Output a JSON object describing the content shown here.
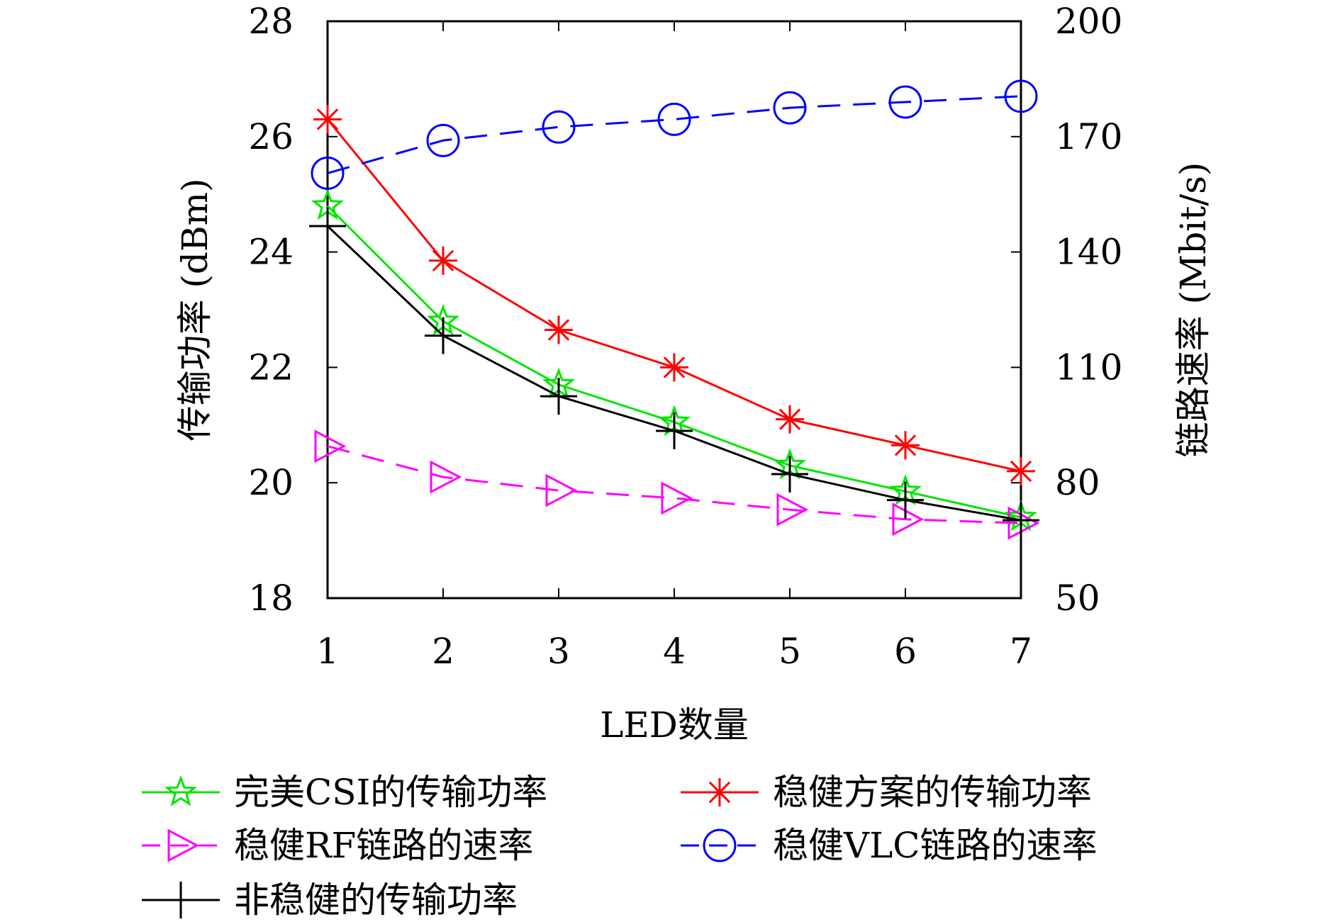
{
  "chart_data": {
    "type": "line",
    "xlabel": "LED数量",
    "ylabel": "传输功率 (dBm)",
    "y2label": "链路速率 (Mbit/s)",
    "x": [
      1,
      2,
      3,
      4,
      5,
      6,
      7
    ],
    "xlim": [
      1,
      7
    ],
    "ylim": [
      18,
      28
    ],
    "y2lim": [
      50,
      200
    ],
    "xticks": [
      "1",
      "2",
      "3",
      "4",
      "5",
      "6",
      "7"
    ],
    "yticks": [
      "18",
      "20",
      "22",
      "24",
      "26",
      "28"
    ],
    "y2ticks": [
      "50",
      "80",
      "110",
      "140",
      "170",
      "200"
    ],
    "grid": false,
    "legend_position": "bottom",
    "series": [
      {
        "name": "完美CSI的传输功率",
        "axis": "left",
        "color": "#00e600",
        "marker": "star",
        "dash": "solid",
        "values": [
          24.8,
          22.8,
          21.7,
          21.05,
          20.3,
          19.85,
          19.4
        ]
      },
      {
        "name": "稳健方案的传输功率",
        "axis": "left",
        "color": "#ff0000",
        "marker": "asterisk",
        "dash": "solid",
        "values": [
          26.3,
          23.85,
          22.65,
          22.0,
          21.1,
          20.65,
          20.2
        ]
      },
      {
        "name": "稳健RF链路的速率",
        "axis": "right",
        "color": "#ff00ff",
        "marker": "triangle-right",
        "dash": "dashed",
        "values": [
          89.5,
          81.5,
          78.0,
          76.0,
          73.0,
          70.5,
          69.5
        ]
      },
      {
        "name": "稳健VLC链路的速率",
        "axis": "right",
        "color": "#0000ff",
        "marker": "circle",
        "dash": "dashed",
        "values": [
          160.5,
          169.0,
          172.5,
          174.5,
          177.5,
          179.0,
          180.5
        ]
      },
      {
        "name": "非稳健的传输功率",
        "axis": "left",
        "color": "#000000",
        "marker": "plus",
        "dash": "solid",
        "values": [
          24.45,
          22.55,
          21.5,
          20.9,
          20.15,
          19.7,
          19.35
        ]
      }
    ]
  }
}
